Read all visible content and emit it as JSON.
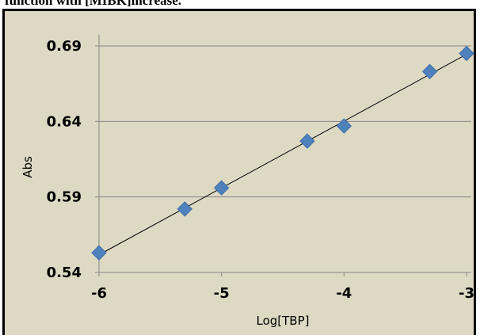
{
  "caption": "function with [MIBK]increase.",
  "chart_data": {
    "type": "scatter",
    "title": "",
    "xlabel": "Log[TBP]",
    "ylabel": "Abs",
    "xlim": [
      -6,
      -3
    ],
    "ylim": [
      0.54,
      0.69
    ],
    "x_ticks": [
      -6,
      -5,
      -4,
      -3
    ],
    "x_tick_labels": [
      "-6",
      "-5",
      "-4",
      "-3"
    ],
    "y_ticks": [
      0.54,
      0.59,
      0.64,
      0.69
    ],
    "y_tick_labels": [
      "0.54",
      "0.59",
      "0.64",
      "0.69"
    ],
    "grid": "horizontal",
    "legend": "none",
    "trendline": "linear",
    "series": [
      {
        "x": [
          -6,
          -5.3,
          -5,
          -4.3,
          -4,
          -3.3,
          -3
        ],
        "y": [
          0.553,
          0.582,
          0.596,
          0.627,
          0.637,
          0.673,
          0.685
        ]
      }
    ],
    "colors": {
      "marker": "#4f81bd",
      "trendline": "#000000",
      "gridline": "#868686",
      "plot_background": "#ddd9c3"
    }
  }
}
